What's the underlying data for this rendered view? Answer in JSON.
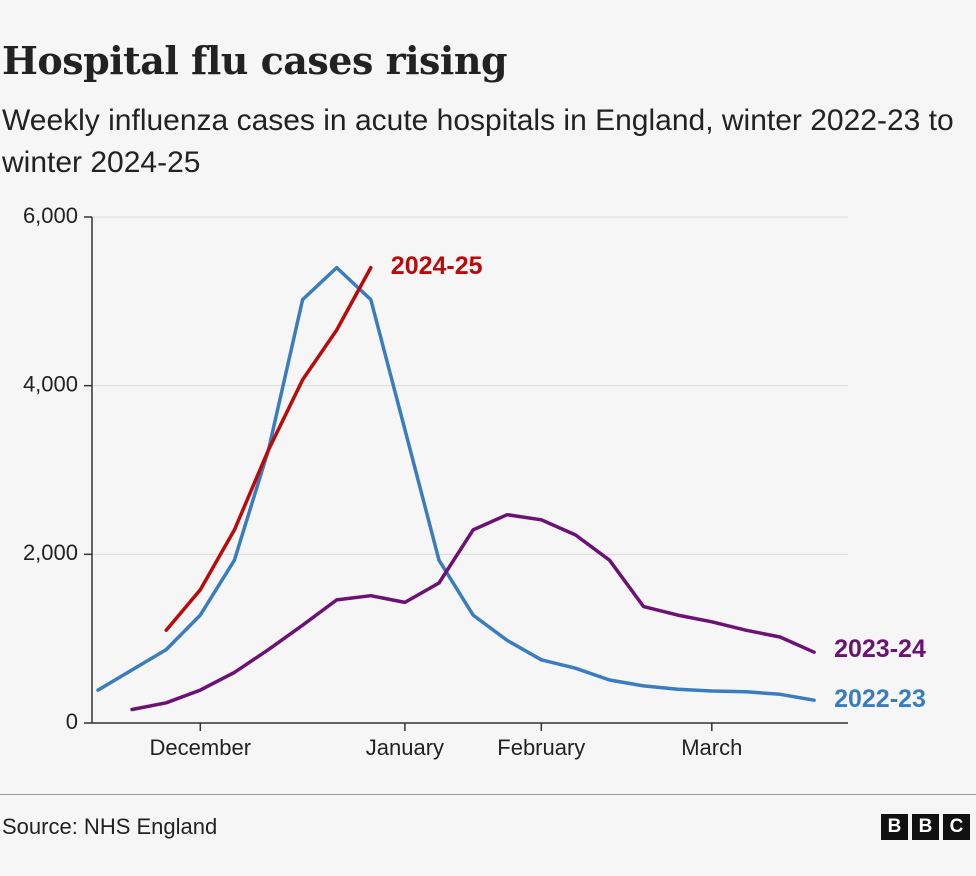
{
  "chart_data": {
    "type": "line",
    "title": "Hospital flu cases rising",
    "subtitle": "Weekly influenza cases in acute hospitals in England, winter 2022-23 to winter 2024-25",
    "categories": [
      null,
      null,
      null,
      "December",
      null,
      null,
      null,
      null,
      null,
      "January",
      null,
      null,
      null,
      "February",
      null,
      null,
      null,
      null,
      "March",
      null,
      null,
      null
    ],
    "series": [
      {
        "name": "2022-23",
        "color": "#3a7dbf",
        "values": [
          390,
          630,
          870,
          1280,
          1930,
          3240,
          5020,
          5400,
          5020,
          3480,
          1930,
          1280,
          980,
          750,
          650,
          510,
          440,
          400,
          380,
          370,
          340,
          270
        ]
      },
      {
        "name": "2023-24",
        "color": "#6b1274",
        "values": [
          null,
          160,
          240,
          390,
          600,
          870,
          1160,
          1460,
          1510,
          1430,
          1660,
          2290,
          2470,
          2410,
          2230,
          1930,
          1380,
          1280,
          1200,
          1100,
          1020,
          840
        ]
      },
      {
        "name": "2024-25",
        "color": "#bb0a0a",
        "values": [
          null,
          null,
          1100,
          1580,
          2290,
          3240,
          4070,
          4660,
          5400,
          null,
          null,
          null,
          null,
          null,
          null,
          null,
          null,
          null,
          null,
          null,
          null,
          null
        ]
      }
    ],
    "ylim": [
      0,
      6000
    ],
    "yticks": [
      0,
      {
        "value": 2000,
        "label": "2,000"
      },
      {
        "value": 4000,
        "label": "4,000"
      },
      {
        "value": 6000,
        "label": "6,000"
      }
    ],
    "grid": true,
    "source": "Source: NHS England",
    "logo": [
      "B",
      "B",
      "C"
    ]
  }
}
